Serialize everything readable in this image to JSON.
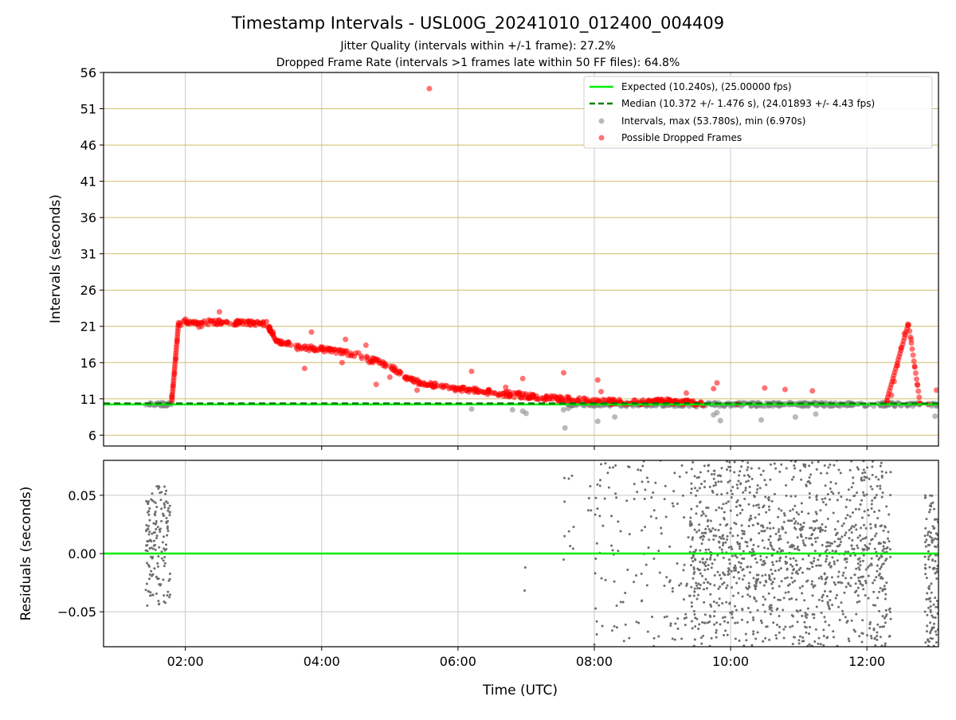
{
  "figure": {
    "title": "Timestamp Intervals - USL00G_20241010_012400_004409",
    "subtitle1": "Jitter Quality (intervals within +/-1 frame): 27.2%",
    "subtitle2": "Dropped Frame Rate (intervals >1 frames late within 50 FF files): 64.8%"
  },
  "colors": {
    "expected": "#00ee00",
    "median": "#008000",
    "intervals": "#808080",
    "dropped": "#ff0000",
    "hgrid": "#d2bd6c",
    "grid": "#c8c8c8",
    "residuals": "#6e6e6e"
  },
  "chart_data": [
    {
      "type": "scatter",
      "ylabel": "Intervals (seconds)",
      "xlabel": "",
      "xlim": [
        0.8,
        13.05
      ],
      "ylim": [
        4.5,
        56
      ],
      "yticks": [
        "6",
        "11",
        "16",
        "21",
        "26",
        "31",
        "36",
        "41",
        "46",
        "51",
        "56"
      ],
      "xticks": [
        "02:00",
        "04:00",
        "06:00",
        "08:00",
        "10:00",
        "12:00"
      ],
      "expected_value": 10.24,
      "median_value": 10.372,
      "legend_position": "upper-right",
      "legend": [
        "Expected (10.240s), (25.00000 fps)",
        "Median (10.372 +/- 1.476 s), (24.01893 +/- 4.43 fps)",
        "Intervals, max (53.780s), min (6.970s)",
        "Possible Dropped Frames"
      ],
      "series": [
        {
          "name": "Intervals, max (53.780s), min (6.970s)",
          "points": [
            [
              1.42,
              10.2
            ],
            [
              1.48,
              10.3
            ],
            [
              1.55,
              10.1
            ],
            [
              1.62,
              10.3
            ],
            [
              1.7,
              10.2
            ],
            [
              1.77,
              10.4
            ],
            [
              1.8,
              11.5
            ],
            [
              6.2,
              9.6
            ],
            [
              6.8,
              9.5
            ],
            [
              6.95,
              9.3
            ],
            [
              7.0,
              9.0
            ],
            [
              7.55,
              9.5
            ],
            [
              7.57,
              7.0
            ],
            [
              7.62,
              9.7
            ],
            [
              8.05,
              7.9
            ],
            [
              8.3,
              8.5
            ],
            [
              8.55,
              10.2
            ],
            [
              8.7,
              10.6
            ],
            [
              9.0,
              10.0
            ],
            [
              9.25,
              10.1
            ],
            [
              9.5,
              9.9
            ],
            [
              9.75,
              8.8
            ],
            [
              9.8,
              9.1
            ],
            [
              9.85,
              8.0
            ],
            [
              10.0,
              10.0
            ],
            [
              10.3,
              10.1
            ],
            [
              10.45,
              8.1
            ],
            [
              10.7,
              10.4
            ],
            [
              10.95,
              8.5
            ],
            [
              11.25,
              8.9
            ],
            [
              11.5,
              10.1
            ],
            [
              11.8,
              10.3
            ],
            [
              12.1,
              10.0
            ],
            [
              12.3,
              10.2
            ],
            [
              12.9,
              10.2
            ],
            [
              13.0,
              8.6
            ]
          ]
        },
        {
          "name": "Possible Dropped Frames",
          "points": [
            [
              1.8,
              11.2
            ],
            [
              1.82,
              12.8
            ],
            [
              1.84,
              14.5
            ],
            [
              1.86,
              16.5
            ],
            [
              1.88,
              19.0
            ],
            [
              1.9,
              21.2
            ],
            [
              2.0,
              22.0
            ],
            [
              2.1,
              21.6
            ],
            [
              2.2,
              20.9
            ],
            [
              2.3,
              21.4
            ],
            [
              2.5,
              23.0
            ],
            [
              2.6,
              21.6
            ],
            [
              2.8,
              21.5
            ],
            [
              3.0,
              21.5
            ],
            [
              3.1,
              21.4
            ],
            [
              3.2,
              21.0
            ],
            [
              3.3,
              19.5
            ],
            [
              3.4,
              18.6
            ],
            [
              3.55,
              18.4
            ],
            [
              3.7,
              18.0
            ],
            [
              3.75,
              15.2
            ],
            [
              3.85,
              20.2
            ],
            [
              3.9,
              18.0
            ],
            [
              4.1,
              17.6
            ],
            [
              4.3,
              17.6
            ],
            [
              4.3,
              16.0
            ],
            [
              4.35,
              19.2
            ],
            [
              4.5,
              17.3
            ],
            [
              4.65,
              18.4
            ],
            [
              4.7,
              16.0
            ],
            [
              4.8,
              13.0
            ],
            [
              4.9,
              15.6
            ],
            [
              5.0,
              14.0
            ],
            [
              5.1,
              14.6
            ],
            [
              5.3,
              13.8
            ],
            [
              5.4,
              12.2
            ],
            [
              5.5,
              13.2
            ],
            [
              5.58,
              53.78
            ],
            [
              5.7,
              12.8
            ],
            [
              5.9,
              12.6
            ],
            [
              6.2,
              14.8
            ],
            [
              6.3,
              12.2
            ],
            [
              6.5,
              11.8
            ],
            [
              6.7,
              12.6
            ],
            [
              6.9,
              11.9
            ],
            [
              6.95,
              13.8
            ],
            [
              7.1,
              11.6
            ],
            [
              7.3,
              11.4
            ],
            [
              7.55,
              14.6
            ],
            [
              7.6,
              11.3
            ],
            [
              7.85,
              11.0
            ],
            [
              8.05,
              13.6
            ],
            [
              8.1,
              12.0
            ],
            [
              8.25,
              10.7
            ],
            [
              8.4,
              10.5
            ],
            [
              8.6,
              10.8
            ],
            [
              8.8,
              10.7
            ],
            [
              9.0,
              10.8
            ],
            [
              9.2,
              10.6
            ],
            [
              9.35,
              11.8
            ],
            [
              9.5,
              10.3
            ],
            [
              9.75,
              12.4
            ],
            [
              9.8,
              13.2
            ],
            [
              10.1,
              10.3
            ],
            [
              10.5,
              12.5
            ],
            [
              10.8,
              12.3
            ],
            [
              11.2,
              12.1
            ],
            [
              12.3,
              10.6
            ],
            [
              12.36,
              11.5
            ],
            [
              12.4,
              13.4
            ],
            [
              12.45,
              15.6
            ],
            [
              12.5,
              18.0
            ],
            [
              12.55,
              20.0
            ],
            [
              12.6,
              21.3
            ],
            [
              12.65,
              19.2
            ],
            [
              12.7,
              15.5
            ],
            [
              12.74,
              13.0
            ],
            [
              12.78,
              10.4
            ],
            [
              12.9,
              10.3
            ],
            [
              13.02,
              12.2
            ]
          ]
        }
      ]
    },
    {
      "type": "scatter",
      "ylabel": "Residuals (seconds)",
      "xlabel": "Time (UTC)",
      "xlim": [
        0.8,
        13.05
      ],
      "ylim": [
        -0.08,
        0.08
      ],
      "yticks": [
        "0.05",
        "0.00",
        "−0.05"
      ],
      "xticks": [
        "02:00",
        "04:00",
        "06:00",
        "08:00",
        "10:00",
        "12:00"
      ],
      "zero_line": 0.0,
      "series": [
        {
          "name": "",
          "point_clusters": [
            {
              "x": [
                1.42,
                1.78
              ],
              "y": [
                -0.045,
                0.058
              ],
              "n": 150
            },
            {
              "x": [
                6.95,
                7.0
              ],
              "y": [
                -0.032,
                -0.01
              ],
              "n": 2
            },
            {
              "x": [
                7.55,
                7.72
              ],
              "y": [
                -0.01,
                0.068
              ],
              "n": 10
            },
            {
              "x": [
                7.9,
                9.5
              ],
              "y": [
                -0.08,
                0.08
              ],
              "n": 160
            },
            {
              "x": [
                9.4,
                12.35
              ],
              "y": [
                -0.08,
                0.08
              ],
              "n": 900
            },
            {
              "x": [
                9.45,
                12.35
              ],
              "y": [
                -0.03,
                0.025
              ],
              "n": 300
            },
            {
              "x": [
                12.85,
                13.05
              ],
              "y": [
                -0.08,
                0.05
              ],
              "n": 120
            }
          ]
        }
      ]
    }
  ]
}
